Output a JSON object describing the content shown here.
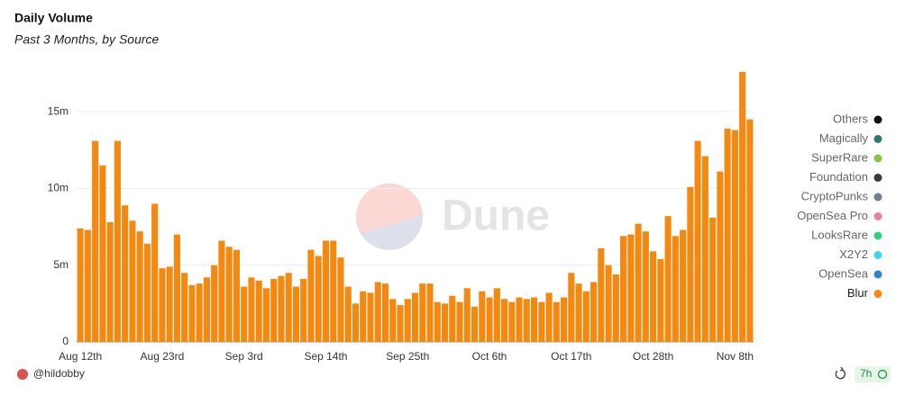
{
  "chart_data": {
    "type": "bar",
    "title": "Daily Volume",
    "subtitle": "Past 3 Months, by Source",
    "watermark": "Dune",
    "author": "@hildobby",
    "refresh_age": "7h",
    "categories": [
      "Aug 12th",
      null,
      null,
      null,
      null,
      null,
      null,
      null,
      null,
      null,
      null,
      "Aug 23rd",
      null,
      null,
      null,
      null,
      null,
      null,
      null,
      null,
      null,
      null,
      "Sep 3rd",
      null,
      null,
      null,
      null,
      null,
      null,
      null,
      null,
      null,
      null,
      "Sep 14th",
      null,
      null,
      null,
      null,
      null,
      null,
      null,
      null,
      null,
      null,
      "Sep 25th",
      null,
      null,
      null,
      null,
      null,
      null,
      null,
      null,
      null,
      null,
      "Oct 6th",
      null,
      null,
      null,
      null,
      null,
      null,
      null,
      null,
      null,
      null,
      "Oct 17th",
      null,
      null,
      null,
      null,
      null,
      null,
      null,
      null,
      null,
      null,
      "Oct 28th",
      null,
      null,
      null,
      null,
      null,
      null,
      null,
      null,
      null,
      null,
      "Nov 8th",
      null,
      null
    ],
    "series": [
      {
        "name": "Others",
        "color": "#111111"
      },
      {
        "name": "Magically",
        "color": "#2a7a72"
      },
      {
        "name": "SuperRare",
        "color": "#8bc34a"
      },
      {
        "name": "Foundation",
        "color": "#3a3a3a"
      },
      {
        "name": "CryptoPunks",
        "color": "#6b7f95"
      },
      {
        "name": "OpenSea Pro",
        "color": "#ec7ea3"
      },
      {
        "name": "LooksRare",
        "color": "#35d07f"
      },
      {
        "name": "X2Y2",
        "color": "#3fd6e8"
      },
      {
        "name": "OpenSea",
        "color": "#2f80d9"
      },
      {
        "name": "Blur",
        "color": "#f5880f",
        "values": [
          7400000,
          7300000,
          13100000,
          11500000,
          7800000,
          13100000,
          8900000,
          7900000,
          7200000,
          6400000,
          9000000,
          4800000,
          4900000,
          7000000,
          4500000,
          3700000,
          3800000,
          4200000,
          5000000,
          6600000,
          6200000,
          6000000,
          3600000,
          4200000,
          4000000,
          3500000,
          4100000,
          4300000,
          4500000,
          3600000,
          4100000,
          6000000,
          5600000,
          6600000,
          6600000,
          5500000,
          3600000,
          2500000,
          3300000,
          3200000,
          3900000,
          3800000,
          2800000,
          2400000,
          2800000,
          3200000,
          3800000,
          3800000,
          2600000,
          2500000,
          3000000,
          2600000,
          3500000,
          2300000,
          3300000,
          2900000,
          3500000,
          2800000,
          2600000,
          2900000,
          2800000,
          2900000,
          2600000,
          3200000,
          2600000,
          2900000,
          4500000,
          3800000,
          3300000,
          3900000,
          6100000,
          5000000,
          4400000,
          6900000,
          7000000,
          7700000,
          7200000,
          5900000,
          5400000,
          8200000,
          6900000,
          7300000,
          10100000,
          13100000,
          12100000,
          8100000,
          11100000,
          13900000,
          13800000,
          17600000,
          14500000
        ]
      }
    ],
    "ylim": [
      0,
      18000000
    ],
    "yticks": [
      {
        "value": 0,
        "label": "0"
      },
      {
        "value": 5000000,
        "label": "5m"
      },
      {
        "value": 10000000,
        "label": "10m"
      },
      {
        "value": 15000000,
        "label": "15m"
      }
    ],
    "grid": true,
    "legend_position": "right"
  }
}
